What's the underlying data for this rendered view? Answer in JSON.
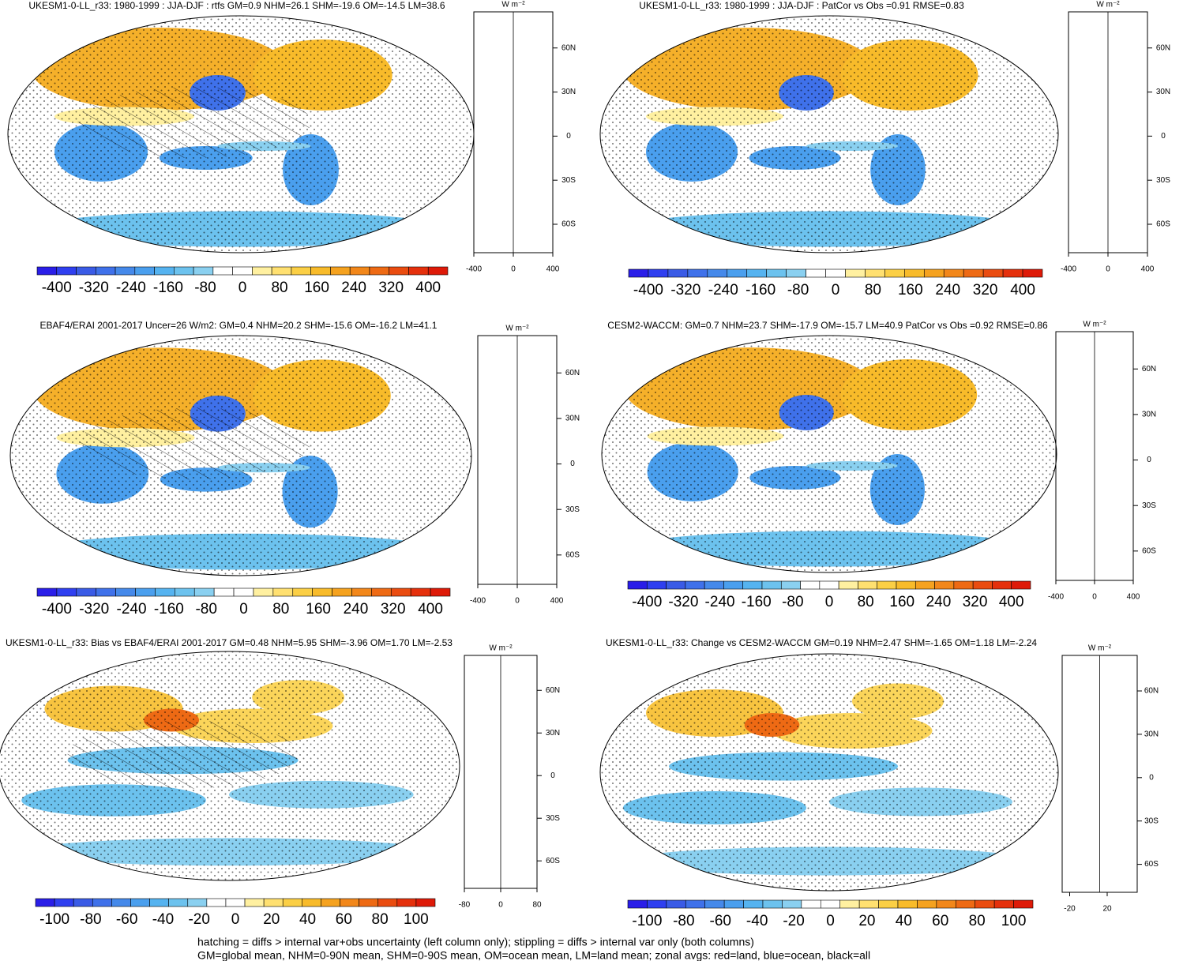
{
  "panels": [
    {
      "title": "UKESM1-0-LL_r33: 1980-1999 : JJA-DJF : rtfs GM=0.9 NHM=26.1 SHM=-19.6 OM=-14.5 LM=38.6",
      "colorbar_ticks": [
        -400,
        -320,
        -240,
        -160,
        -80,
        0,
        80,
        160,
        240,
        320,
        400
      ],
      "profile_unit": "W m⁻²",
      "profile_xticks": [
        -400,
        0,
        400
      ],
      "profile_yticks": [
        "60N",
        "30N",
        "0",
        "30S",
        "60S"
      ]
    },
    {
      "title": "UKESM1-0-LL_r33: 1980-1999 : JJA-DJF : PatCor vs Obs =0.91 RMSE=0.83",
      "colorbar_ticks": [
        -400,
        -320,
        -240,
        -160,
        -80,
        0,
        80,
        160,
        240,
        320,
        400
      ],
      "profile_unit": "W m⁻²",
      "profile_xticks": [
        -400,
        0,
        400
      ],
      "profile_yticks": [
        "60N",
        "30N",
        "0",
        "30S",
        "60S"
      ]
    },
    {
      "title": "EBAF4/ERAI 2001-2017 Uncer=26 W/m2: GM=0.4 NHM=20.2 SHM=-15.6 OM=-16.2 LM=41.1",
      "colorbar_ticks": [
        -400,
        -320,
        -240,
        -160,
        -80,
        0,
        80,
        160,
        240,
        320,
        400
      ],
      "profile_unit": "W m⁻²",
      "profile_xticks": [
        -400,
        0,
        400
      ],
      "profile_yticks": [
        "60N",
        "30N",
        "0",
        "30S",
        "60S"
      ]
    },
    {
      "title": "CESM2-WACCM: GM=0.7 NHM=23.7 SHM=-17.9 OM=-15.7 LM=40.9 PatCor vs Obs =0.92 RMSE=0.86",
      "colorbar_ticks": [
        -400,
        -320,
        -240,
        -160,
        -80,
        0,
        80,
        160,
        240,
        320,
        400
      ],
      "profile_unit": "W m⁻²",
      "profile_xticks": [
        -400,
        0,
        400
      ],
      "profile_yticks": [
        "60N",
        "30N",
        "0",
        "30S",
        "60S"
      ]
    },
    {
      "title": "UKESM1-0-LL_r33: Bias vs EBAF4/ERAI 2001-2017 GM=0.48 NHM=5.95 SHM=-3.96 OM=1.70 LM=-2.53",
      "colorbar_ticks": [
        -100,
        -80,
        -60,
        -40,
        -20,
        0,
        20,
        40,
        60,
        80,
        100
      ],
      "profile_unit": "W m⁻²",
      "profile_xticks": [
        -80,
        0,
        80
      ],
      "profile_yticks": [
        "60N",
        "30N",
        "0",
        "30S",
        "60S"
      ]
    },
    {
      "title": "UKESM1-0-LL_r33: Change vs CESM2-WACCM GM=0.19 NHM=2.47 SHM=-1.65 OM=1.18 LM=-2.24",
      "colorbar_ticks": [
        -100,
        -80,
        -60,
        -40,
        -20,
        0,
        20,
        40,
        60,
        80,
        100
      ],
      "profile_unit": "W m⁻²",
      "profile_xticks": [
        -20,
        20
      ],
      "profile_yticks": [
        "60N",
        "30N",
        "0",
        "30S",
        "60S"
      ]
    }
  ],
  "footnote": [
    "hatching = diffs > internal var+obs uncertainty (left column only); stippling = diffs > internal var only (both columns)",
    "GM=global mean, NHM=0-90N mean, SHM=0-90S mean, OM=ocean mean, LM=land mean; zonal avgs: red=land, blue=ocean, black=all"
  ]
}
